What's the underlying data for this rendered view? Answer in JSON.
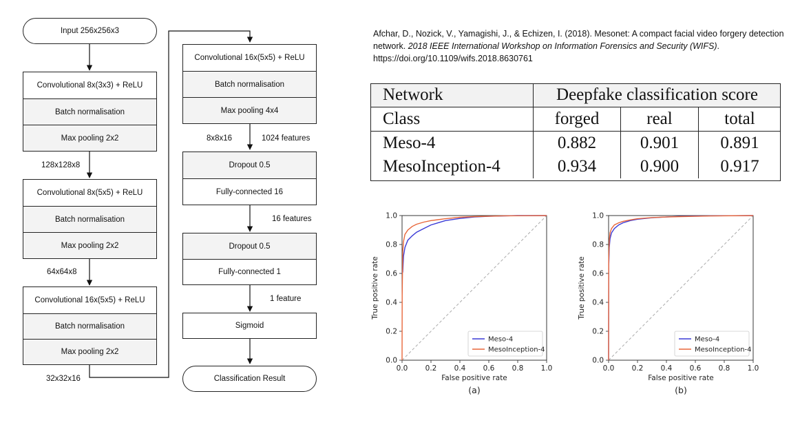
{
  "flowchart": {
    "input": "Input 256x256x3",
    "block1": [
      "Convolutional 8x(3x3) + ReLU",
      "Batch normalisation",
      "Max pooling 2x2"
    ],
    "dim1": "128x128x8",
    "block2": [
      "Convolutional 8x(5x5) + ReLU",
      "Batch normalisation",
      "Max pooling 2x2"
    ],
    "dim2": "64x64x8",
    "block3": [
      "Convolutional 16x(5x5) + ReLU",
      "Batch normalisation",
      "Max pooling 2x2"
    ],
    "dim3": "32x32x16",
    "block4": [
      "Convolutional 16x(5x5) + ReLU",
      "Batch normalisation",
      "Max pooling 4x4"
    ],
    "dim4a": "8x8x16",
    "dim4b": "1024 features",
    "block5": [
      "Dropout 0.5",
      "Fully-connected 16"
    ],
    "dim5": "16 features",
    "block6": [
      "Dropout 0.5",
      "Fully-connected 1"
    ],
    "dim6": "1 feature",
    "sigmoid": "Sigmoid",
    "result": "Classification Result"
  },
  "citation": {
    "authors": "Afchar, D., Nozick, V., Yamagishi, J., & Echizen, I. (2018). Mesonet: A compact facial video forgery detection network.",
    "venue": "2018 IEEE International Workshop on Information Forensics and Security (WIFS)",
    "doi": ". https://doi.org/10.1109/wifs.2018.8630761"
  },
  "table": {
    "col0_header": "Network",
    "group_header": "Deepfake classification score",
    "class_label": "Class",
    "sub_headers": [
      "forged",
      "real",
      "total"
    ],
    "rows": [
      {
        "name": "Meso-4",
        "forged": "0.882",
        "real": "0.901",
        "total": "0.891"
      },
      {
        "name": "MesoInception-4",
        "forged": "0.934",
        "real": "0.900",
        "total": "0.917"
      }
    ]
  },
  "chart_data": [
    {
      "type": "line",
      "caption": "(a)",
      "xlabel": "False positive rate",
      "ylabel": "True positive rate",
      "xlim": [
        0,
        1
      ],
      "ylim": [
        0,
        1
      ],
      "xticks": [
        "0.0",
        "0.2",
        "0.4",
        "0.6",
        "0.8",
        "1.0"
      ],
      "yticks": [
        "0.0",
        "0.2",
        "0.4",
        "0.6",
        "0.8",
        "1.0"
      ],
      "legend_position": "bottom-right",
      "diagonal_color": "#aaaaaa",
      "series": [
        {
          "name": "Meso-4",
          "color": "#3a3ad6",
          "points": [
            [
              0,
              0.6
            ],
            [
              0.005,
              0.61
            ],
            [
              0.01,
              0.72
            ],
            [
              0.02,
              0.78
            ],
            [
              0.04,
              0.83
            ],
            [
              0.07,
              0.86
            ],
            [
              0.1,
              0.885
            ],
            [
              0.15,
              0.91
            ],
            [
              0.2,
              0.935
            ],
            [
              0.3,
              0.965
            ],
            [
              0.4,
              0.98
            ],
            [
              0.5,
              0.99
            ],
            [
              0.6,
              0.995
            ],
            [
              0.8,
              1.0
            ],
            [
              1.0,
              1.0
            ]
          ]
        },
        {
          "name": "MesoInception-4",
          "color": "#e8663a",
          "points": [
            [
              0,
              0
            ],
            [
              0.001,
              0.45
            ],
            [
              0.005,
              0.75
            ],
            [
              0.01,
              0.82
            ],
            [
              0.02,
              0.87
            ],
            [
              0.04,
              0.9
            ],
            [
              0.07,
              0.925
            ],
            [
              0.1,
              0.94
            ],
            [
              0.15,
              0.955
            ],
            [
              0.2,
              0.965
            ],
            [
              0.3,
              0.978
            ],
            [
              0.4,
              0.988
            ],
            [
              0.5,
              0.993
            ],
            [
              0.7,
              0.998
            ],
            [
              1.0,
              1.0
            ]
          ]
        }
      ]
    },
    {
      "type": "line",
      "caption": "(b)",
      "xlabel": "False positive rate",
      "ylabel": "True positive rate",
      "xlim": [
        0,
        1
      ],
      "ylim": [
        0,
        1
      ],
      "xticks": [
        "0.0",
        "0.2",
        "0.4",
        "0.6",
        "0.8",
        "1.0"
      ],
      "yticks": [
        "0.0",
        "0.2",
        "0.4",
        "0.6",
        "0.8",
        "1.0"
      ],
      "legend_position": "bottom-right",
      "diagonal_color": "#aaaaaa",
      "series": [
        {
          "name": "Meso-4",
          "color": "#3a3ad6",
          "points": [
            [
              0,
              0
            ],
            [
              0.001,
              0.65
            ],
            [
              0.005,
              0.78
            ],
            [
              0.01,
              0.84
            ],
            [
              0.02,
              0.88
            ],
            [
              0.04,
              0.91
            ],
            [
              0.07,
              0.935
            ],
            [
              0.1,
              0.95
            ],
            [
              0.15,
              0.965
            ],
            [
              0.2,
              0.975
            ],
            [
              0.3,
              0.985
            ],
            [
              0.4,
              0.99
            ],
            [
              0.5,
              0.995
            ],
            [
              0.7,
              0.998
            ],
            [
              1.0,
              1.0
            ]
          ]
        },
        {
          "name": "MesoInception-4",
          "color": "#e8663a",
          "points": [
            [
              0,
              0
            ],
            [
              0.001,
              0.7
            ],
            [
              0.005,
              0.83
            ],
            [
              0.01,
              0.88
            ],
            [
              0.02,
              0.91
            ],
            [
              0.04,
              0.935
            ],
            [
              0.07,
              0.95
            ],
            [
              0.1,
              0.96
            ],
            [
              0.15,
              0.97
            ],
            [
              0.2,
              0.978
            ],
            [
              0.3,
              0.986
            ],
            [
              0.4,
              0.99
            ],
            [
              0.5,
              0.993
            ],
            [
              0.7,
              0.997
            ],
            [
              1.0,
              1.0
            ]
          ]
        }
      ]
    }
  ]
}
